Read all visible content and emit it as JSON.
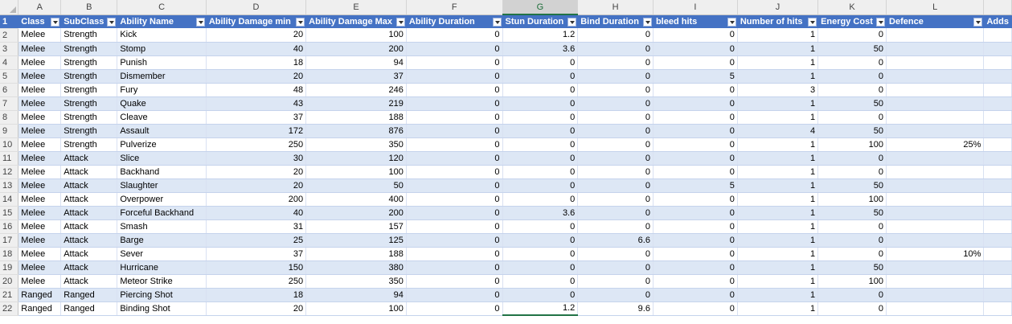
{
  "columns": [
    "A",
    "B",
    "C",
    "D",
    "E",
    "F",
    "G",
    "H",
    "I",
    "J",
    "K",
    "L",
    ""
  ],
  "selected_column": "G",
  "headers": [
    "Class",
    "SubClass",
    "Ability Name",
    "Ability Damage min",
    "Ability Damage Max",
    "Ability Duration",
    "Stun Duration",
    "Bind Duration",
    "bleed hits",
    "Number of hits",
    "Energy Cost",
    "Defence",
    "Adds"
  ],
  "rows": [
    {
      "n": "2",
      "cls": "Melee",
      "sub": "Strength",
      "name": "Kick",
      "dmin": "20",
      "dmax": "100",
      "dur": "0",
      "stun": "1.2",
      "bind": "0",
      "bleed": "0",
      "hits": "1",
      "energy": "0",
      "def": "",
      "adds": ""
    },
    {
      "n": "3",
      "cls": "Melee",
      "sub": "Strength",
      "name": "Stomp",
      "dmin": "40",
      "dmax": "200",
      "dur": "0",
      "stun": "3.6",
      "bind": "0",
      "bleed": "0",
      "hits": "1",
      "energy": "50",
      "def": "",
      "adds": ""
    },
    {
      "n": "4",
      "cls": "Melee",
      "sub": "Strength",
      "name": "Punish",
      "dmin": "18",
      "dmax": "94",
      "dur": "0",
      "stun": "0",
      "bind": "0",
      "bleed": "0",
      "hits": "1",
      "energy": "0",
      "def": "",
      "adds": ""
    },
    {
      "n": "5",
      "cls": "Melee",
      "sub": "Strength",
      "name": "Dismember",
      "dmin": "20",
      "dmax": "37",
      "dur": "0",
      "stun": "0",
      "bind": "0",
      "bleed": "5",
      "hits": "1",
      "energy": "0",
      "def": "",
      "adds": ""
    },
    {
      "n": "6",
      "cls": "Melee",
      "sub": "Strength",
      "name": "Fury",
      "dmin": "48",
      "dmax": "246",
      "dur": "0",
      "stun": "0",
      "bind": "0",
      "bleed": "0",
      "hits": "3",
      "energy": "0",
      "def": "",
      "adds": ""
    },
    {
      "n": "7",
      "cls": "Melee",
      "sub": "Strength",
      "name": "Quake",
      "dmin": "43",
      "dmax": "219",
      "dur": "0",
      "stun": "0",
      "bind": "0",
      "bleed": "0",
      "hits": "1",
      "energy": "50",
      "def": "",
      "adds": ""
    },
    {
      "n": "8",
      "cls": "Melee",
      "sub": "Strength",
      "name": "Cleave",
      "dmin": "37",
      "dmax": "188",
      "dur": "0",
      "stun": "0",
      "bind": "0",
      "bleed": "0",
      "hits": "1",
      "energy": "0",
      "def": "",
      "adds": ""
    },
    {
      "n": "9",
      "cls": "Melee",
      "sub": "Strength",
      "name": "Assault",
      "dmin": "172",
      "dmax": "876",
      "dur": "0",
      "stun": "0",
      "bind": "0",
      "bleed": "0",
      "hits": "4",
      "energy": "50",
      "def": "",
      "adds": ""
    },
    {
      "n": "10",
      "cls": "Melee",
      "sub": "Strength",
      "name": "Pulverize",
      "dmin": "250",
      "dmax": "350",
      "dur": "0",
      "stun": "0",
      "bind": "0",
      "bleed": "0",
      "hits": "1",
      "energy": "100",
      "def": "25%",
      "adds": ""
    },
    {
      "n": "11",
      "cls": "Melee",
      "sub": "Attack",
      "name": "Slice",
      "dmin": "30",
      "dmax": "120",
      "dur": "0",
      "stun": "0",
      "bind": "0",
      "bleed": "0",
      "hits": "1",
      "energy": "0",
      "def": "",
      "adds": ""
    },
    {
      "n": "12",
      "cls": "Melee",
      "sub": "Attack",
      "name": "Backhand",
      "dmin": "20",
      "dmax": "100",
      "dur": "0",
      "stun": "0",
      "bind": "0",
      "bleed": "0",
      "hits": "1",
      "energy": "0",
      "def": "",
      "adds": ""
    },
    {
      "n": "13",
      "cls": "Melee",
      "sub": "Attack",
      "name": "Slaughter",
      "dmin": "20",
      "dmax": "50",
      "dur": "0",
      "stun": "0",
      "bind": "0",
      "bleed": "5",
      "hits": "1",
      "energy": "50",
      "def": "",
      "adds": ""
    },
    {
      "n": "14",
      "cls": "Melee",
      "sub": "Attack",
      "name": "Overpower",
      "dmin": "200",
      "dmax": "400",
      "dur": "0",
      "stun": "0",
      "bind": "0",
      "bleed": "0",
      "hits": "1",
      "energy": "100",
      "def": "",
      "adds": ""
    },
    {
      "n": "15",
      "cls": "Melee",
      "sub": "Attack",
      "name": "Forceful Backhand",
      "dmin": "40",
      "dmax": "200",
      "dur": "0",
      "stun": "3.6",
      "bind": "0",
      "bleed": "0",
      "hits": "1",
      "energy": "50",
      "def": "",
      "adds": ""
    },
    {
      "n": "16",
      "cls": "Melee",
      "sub": "Attack",
      "name": "Smash",
      "dmin": "31",
      "dmax": "157",
      "dur": "0",
      "stun": "0",
      "bind": "0",
      "bleed": "0",
      "hits": "1",
      "energy": "0",
      "def": "",
      "adds": ""
    },
    {
      "n": "17",
      "cls": "Melee",
      "sub": "Attack",
      "name": "Barge",
      "dmin": "25",
      "dmax": "125",
      "dur": "0",
      "stun": "0",
      "bind": "6.6",
      "bleed": "0",
      "hits": "1",
      "energy": "0",
      "def": "",
      "adds": ""
    },
    {
      "n": "18",
      "cls": "Melee",
      "sub": "Attack",
      "name": "Sever",
      "dmin": "37",
      "dmax": "188",
      "dur": "0",
      "stun": "0",
      "bind": "0",
      "bleed": "0",
      "hits": "1",
      "energy": "0",
      "def": "10%",
      "adds": ""
    },
    {
      "n": "19",
      "cls": "Melee",
      "sub": "Attack",
      "name": "Hurricane",
      "dmin": "150",
      "dmax": "380",
      "dur": "0",
      "stun": "0",
      "bind": "0",
      "bleed": "0",
      "hits": "1",
      "energy": "50",
      "def": "",
      "adds": ""
    },
    {
      "n": "20",
      "cls": "Melee",
      "sub": "Attack",
      "name": "Meteor Strike",
      "dmin": "250",
      "dmax": "350",
      "dur": "0",
      "stun": "0",
      "bind": "0",
      "bleed": "0",
      "hits": "1",
      "energy": "100",
      "def": "",
      "adds": ""
    },
    {
      "n": "21",
      "cls": "Ranged",
      "sub": "Ranged",
      "name": "Piercing Shot",
      "dmin": "18",
      "dmax": "94",
      "dur": "0",
      "stun": "0",
      "bind": "0",
      "bleed": "0",
      "hits": "1",
      "energy": "0",
      "def": "",
      "adds": ""
    },
    {
      "n": "22",
      "cls": "Ranged",
      "sub": "Ranged",
      "name": "Binding Shot",
      "dmin": "20",
      "dmax": "100",
      "dur": "0",
      "stun": "1.2",
      "bind": "9.6",
      "bleed": "0",
      "hits": "1",
      "energy": "0",
      "def": "",
      "adds": ""
    }
  ],
  "colors": {
    "header_fill": "#4472c4",
    "band_fill": "#dde7f5",
    "selected_column_accent": "#217346"
  }
}
